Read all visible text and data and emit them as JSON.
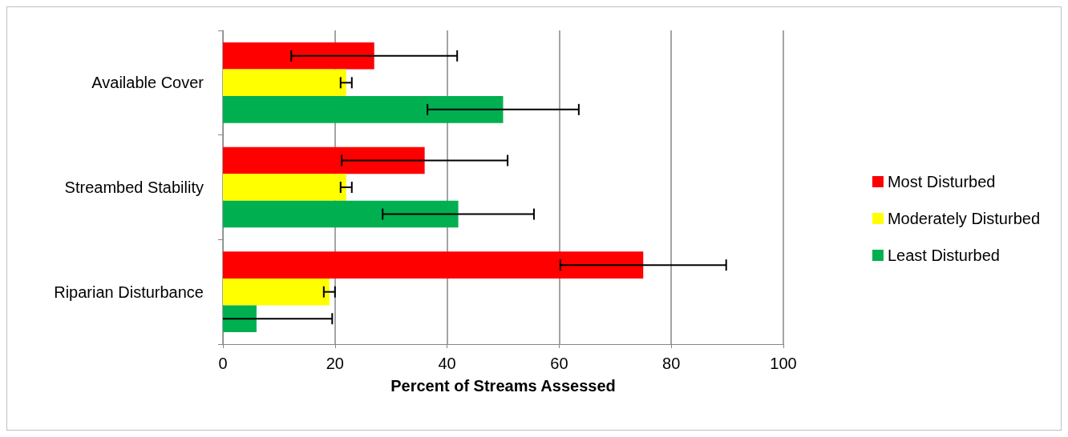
{
  "chart_data": {
    "type": "bar",
    "orientation": "horizontal",
    "xlabel": "Percent of Streams Assessed",
    "categories": [
      "Available Cover",
      "Streambed Stability",
      "Riparian Disturbance"
    ],
    "series": [
      {
        "name": "Most Disturbed",
        "color": "#ff0000",
        "values": [
          27,
          36,
          75
        ],
        "errors": [
          14.8,
          14.8,
          14.8
        ]
      },
      {
        "name": "Moderately Disturbed",
        "color": "#ffff00",
        "values": [
          22,
          22,
          19
        ],
        "errors": [
          1,
          1,
          1
        ]
      },
      {
        "name": "Least Disturbed",
        "color": "#00b050",
        "values": [
          50,
          42,
          6
        ],
        "errors": [
          13.5,
          13.5,
          [
            0,
            19.5
          ]
        ]
      }
    ],
    "xlim": [
      0,
      100
    ],
    "xticks": [
      0,
      20,
      40,
      60,
      80,
      100
    ],
    "grid": "x",
    "legend": "right"
  }
}
